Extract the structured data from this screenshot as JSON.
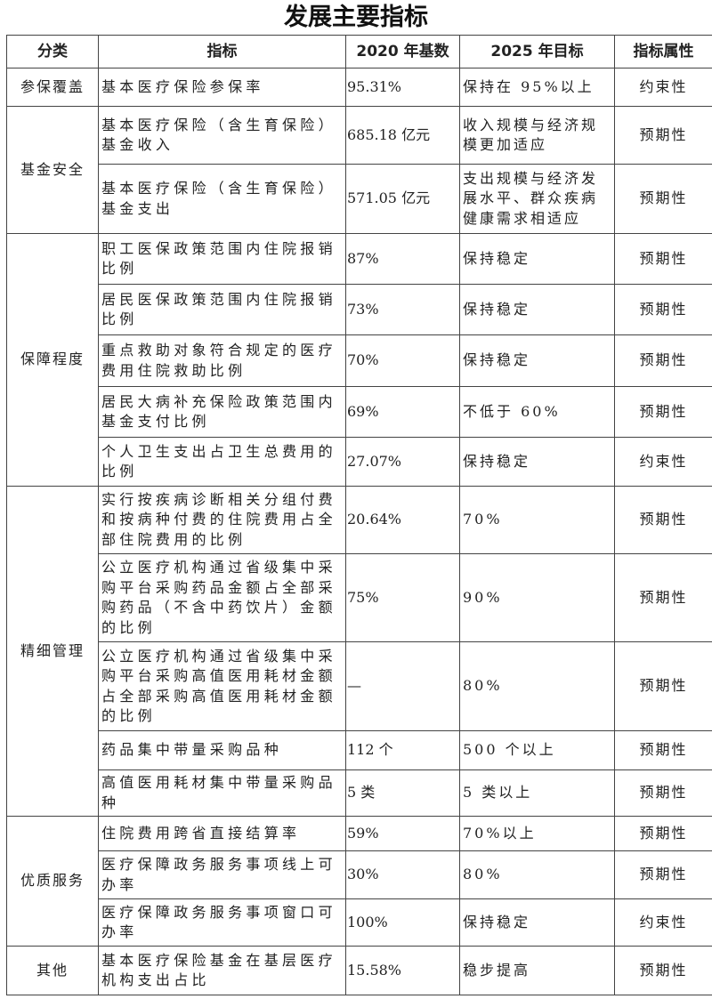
{
  "title": "发展主要指标",
  "headers": [
    "分类",
    "指标",
    "2020 年基数",
    "2025 年目标",
    "指标属性"
  ],
  "groups": [
    {
      "name": "参保覆盖",
      "rows": [
        {
          "indicator": "基本医疗保险参保率",
          "base": "95.31%",
          "target": "保持在 95%以上",
          "attr": "约束性"
        }
      ]
    },
    {
      "name": "基金安全",
      "rows": [
        {
          "indicator": "基本医疗保险（含生育保险）基金收入",
          "base": "685.18 亿元",
          "target": "收入规模与经济规模更加适应",
          "attr": "预期性"
        },
        {
          "indicator": "基本医疗保险（含生育保险）基金支出",
          "base": "571.05 亿元",
          "target": "支出规模与经济发展水平、群众疾病健康需求相适应",
          "attr": "预期性"
        }
      ]
    },
    {
      "name": "保障程度",
      "rows": [
        {
          "indicator": "职工医保政策范围内住院报销比例",
          "base": "87%",
          "target": "保持稳定",
          "attr": "预期性"
        },
        {
          "indicator": "居民医保政策范围内住院报销比例",
          "base": "73%",
          "target": "保持稳定",
          "attr": "预期性"
        },
        {
          "indicator": "重点救助对象符合规定的医疗费用住院救助比例",
          "base": "70%",
          "target": "保持稳定",
          "attr": "预期性"
        },
        {
          "indicator": "居民大病补充保险政策范围内基金支付比例",
          "base": "69%",
          "target": "不低于 60%",
          "attr": "预期性"
        },
        {
          "indicator": "个人卫生支出占卫生总费用的比例",
          "base": "27.07%",
          "target": "保持稳定",
          "attr": "约束性"
        }
      ]
    },
    {
      "name": "精细管理",
      "rows": [
        {
          "indicator": "实行按疾病诊断相关分组付费和按病种付费的住院费用占全部住院费用的比例",
          "base": "20.64%",
          "target": "70%",
          "attr": "预期性"
        },
        {
          "indicator": "公立医疗机构通过省级集中采购平台采购药品金额占全部采购药品（不含中药饮片）金额的比例",
          "base": "75%",
          "target": "90%",
          "attr": "预期性"
        },
        {
          "indicator": "公立医疗机构通过省级集中采购平台采购高值医用耗材金额占全部采购高值医用耗材金额的比例",
          "base": "—",
          "target": "80%",
          "attr": "预期性"
        },
        {
          "indicator": "药品集中带量采购品种",
          "base": "112 个",
          "target": "500 个以上",
          "attr": "预期性"
        },
        {
          "indicator": "高值医用耗材集中带量采购品种",
          "base": "5 类",
          "target": "5 类以上",
          "attr": "预期性"
        }
      ]
    },
    {
      "name": "优质服务",
      "rows": [
        {
          "indicator": "住院费用跨省直接结算率",
          "base": "59%",
          "target": "70%以上",
          "attr": "预期性"
        },
        {
          "indicator": "医疗保障政务服务事项线上可办率",
          "base": "30%",
          "target": "80%",
          "attr": "预期性"
        },
        {
          "indicator": "医疗保障政务服务事项窗口可办率",
          "base": "100%",
          "target": "保持稳定",
          "attr": "约束性"
        }
      ]
    },
    {
      "name": "其他",
      "rows": [
        {
          "indicator": "基本医疗保险基金在基层医疗机构支出占比",
          "base": "15.58%",
          "target": "稳步提高",
          "attr": "预期性"
        }
      ]
    }
  ]
}
